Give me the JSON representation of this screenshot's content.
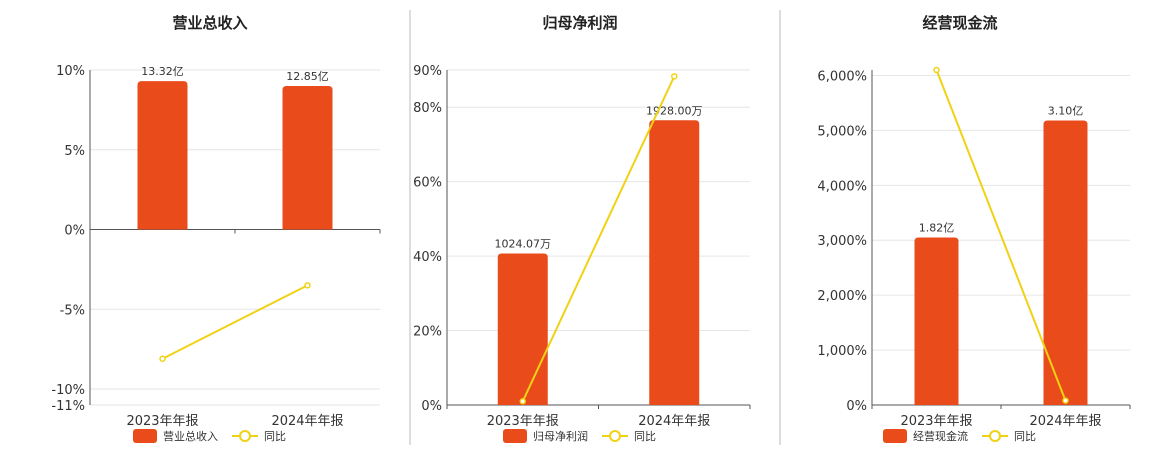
{
  "colors": {
    "bar": "#e94b1b",
    "line": "#f0d215",
    "grid": "#e6e6e6",
    "axis": "#555555",
    "divider": "#bbbbbb"
  },
  "chart_data": [
    {
      "type": "bar",
      "title": "营业总收入",
      "categories": [
        "2023年年报",
        "2024年年报"
      ],
      "series": [
        {
          "name": "营业总收入",
          "type": "bar",
          "values": [
            9.3,
            9.0
          ],
          "data_labels": [
            "13.32亿",
            "12.85亿"
          ]
        },
        {
          "name": "同比",
          "type": "line",
          "values": [
            -8.1,
            -3.5
          ]
        }
      ],
      "yticks": [
        {
          "value": 10,
          "label": "10%"
        },
        {
          "value": 5,
          "label": "5%"
        },
        {
          "value": 0,
          "label": "0%"
        },
        {
          "value": -5,
          "label": "-5%"
        },
        {
          "value": -10,
          "label": "-10%"
        },
        {
          "value": -11,
          "label": "-11%"
        }
      ],
      "ylim": [
        -11,
        10
      ],
      "grid": true,
      "legend": "bottom"
    },
    {
      "type": "bar",
      "title": "归母净利润",
      "categories": [
        "2023年年报",
        "2024年年报"
      ],
      "series": [
        {
          "name": "归母净利润",
          "type": "bar",
          "values": [
            40.7,
            76.5
          ],
          "data_labels": [
            "1024.07万",
            "1928.00万"
          ]
        },
        {
          "name": "同比",
          "type": "line",
          "values": [
            1,
            88.3
          ]
        }
      ],
      "yticks": [
        {
          "value": 0,
          "label": "0%"
        },
        {
          "value": 20,
          "label": "20%"
        },
        {
          "value": 40,
          "label": "40%"
        },
        {
          "value": 60,
          "label": "60%"
        },
        {
          "value": 80,
          "label": "80%"
        },
        {
          "value": 90,
          "label": "90%"
        }
      ],
      "ylim": [
        0,
        90
      ],
      "grid": true,
      "legend": "bottom"
    },
    {
      "type": "bar",
      "title": "经营现金流",
      "categories": [
        "2023年年报",
        "2024年年报"
      ],
      "series": [
        {
          "name": "经营现金流",
          "type": "bar",
          "values": [
            3050,
            5180
          ],
          "data_labels": [
            "1.82亿",
            "3.10亿"
          ]
        },
        {
          "name": "同比",
          "type": "line",
          "values": [
            6100,
            80
          ]
        }
      ],
      "yticks": [
        {
          "value": 0,
          "label": "0%"
        },
        {
          "value": 1000,
          "label": "1,000%"
        },
        {
          "value": 2000,
          "label": "2,000%"
        },
        {
          "value": 3000,
          "label": "3,000%"
        },
        {
          "value": 4000,
          "label": "4,000%"
        },
        {
          "value": 5000,
          "label": "5,000%"
        },
        {
          "value": 6000,
          "label": "6,000%"
        }
      ],
      "ylim": [
        0,
        6100
      ],
      "grid": true,
      "legend": "bottom"
    }
  ]
}
